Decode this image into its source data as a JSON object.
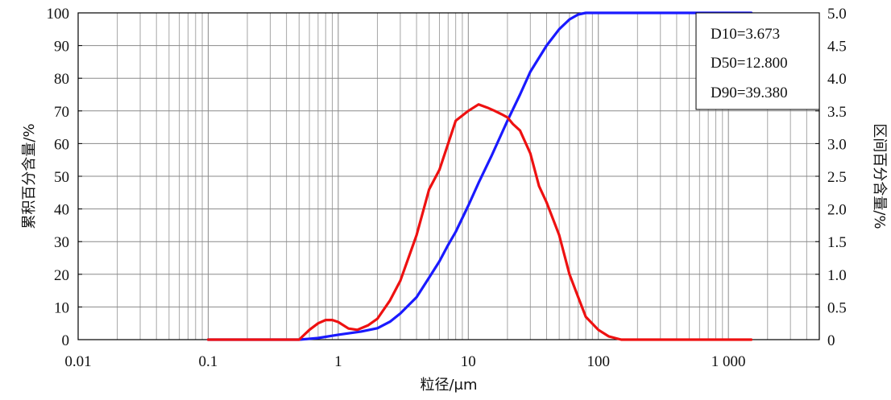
{
  "chart_data": {
    "type": "line",
    "xlabel": "粒径/μm",
    "ylabel_left": "累积百分含量/%",
    "ylabel_right": "区间百分含量/%",
    "x_scale": "log",
    "xlim": [
      0.01,
      5000
    ],
    "ylim_left": [
      0,
      100
    ],
    "ylim_right": [
      0,
      5.0
    ],
    "x_ticks": [
      {
        "value": 0.01,
        "label": "0.01"
      },
      {
        "value": 0.1,
        "label": "0.1"
      },
      {
        "value": 1,
        "label": "1"
      },
      {
        "value": 10,
        "label": "10"
      },
      {
        "value": 100,
        "label": "100"
      },
      {
        "value": 1000,
        "label": "1 000"
      }
    ],
    "y_left_ticks": [
      0,
      10,
      20,
      30,
      40,
      50,
      60,
      70,
      80,
      90,
      100
    ],
    "y_right_ticks": [
      "0",
      "0.5",
      "1.0",
      "1.5",
      "2.0",
      "2.5",
      "3.0",
      "3.5",
      "4.0",
      "4.5",
      "5.0"
    ],
    "grid": true,
    "legend_box": {
      "position": "top-right",
      "lines": [
        "D10=3.673",
        "D50=12.800",
        "D90=39.380"
      ]
    },
    "series": [
      {
        "axis": "left",
        "color": "#1a1aff",
        "points": [
          [
            0.1,
            0
          ],
          [
            0.3,
            0
          ],
          [
            0.5,
            0
          ],
          [
            0.7,
            0.5
          ],
          [
            1,
            1.5
          ],
          [
            1.5,
            2.5
          ],
          [
            2,
            3.5
          ],
          [
            2.5,
            5.5
          ],
          [
            3,
            8
          ],
          [
            4,
            13
          ],
          [
            5,
            19
          ],
          [
            6,
            24
          ],
          [
            7,
            29
          ],
          [
            8,
            33
          ],
          [
            10,
            41
          ],
          [
            12,
            48
          ],
          [
            15,
            56
          ],
          [
            20,
            67
          ],
          [
            25,
            75
          ],
          [
            30,
            82
          ],
          [
            40,
            90
          ],
          [
            50,
            95
          ],
          [
            60,
            98
          ],
          [
            70,
            99.5
          ],
          [
            80,
            100
          ],
          [
            100,
            100
          ],
          [
            1000,
            100
          ],
          [
            1500,
            100
          ]
        ]
      },
      {
        "axis": "right",
        "color": "#ee1111",
        "points": [
          [
            0.1,
            0
          ],
          [
            0.3,
            0
          ],
          [
            0.5,
            0
          ],
          [
            0.6,
            0.15
          ],
          [
            0.7,
            0.25
          ],
          [
            0.8,
            0.3
          ],
          [
            0.9,
            0.3
          ],
          [
            1,
            0.27
          ],
          [
            1.2,
            0.17
          ],
          [
            1.4,
            0.15
          ],
          [
            1.7,
            0.22
          ],
          [
            2,
            0.32
          ],
          [
            2.5,
            0.6
          ],
          [
            3,
            0.9
          ],
          [
            4,
            1.6
          ],
          [
            5,
            2.3
          ],
          [
            6,
            2.6
          ],
          [
            7,
            3.0
          ],
          [
            8,
            3.35
          ],
          [
            10,
            3.5
          ],
          [
            12,
            3.6
          ],
          [
            14,
            3.55
          ],
          [
            16,
            3.5
          ],
          [
            18,
            3.45
          ],
          [
            20,
            3.4
          ],
          [
            22,
            3.3
          ],
          [
            25,
            3.2
          ],
          [
            30,
            2.85
          ],
          [
            35,
            2.35
          ],
          [
            40,
            2.1
          ],
          [
            50,
            1.6
          ],
          [
            60,
            1.0
          ],
          [
            70,
            0.65
          ],
          [
            80,
            0.35
          ],
          [
            100,
            0.15
          ],
          [
            120,
            0.05
          ],
          [
            150,
            0
          ],
          [
            1500,
            0
          ]
        ]
      }
    ]
  }
}
